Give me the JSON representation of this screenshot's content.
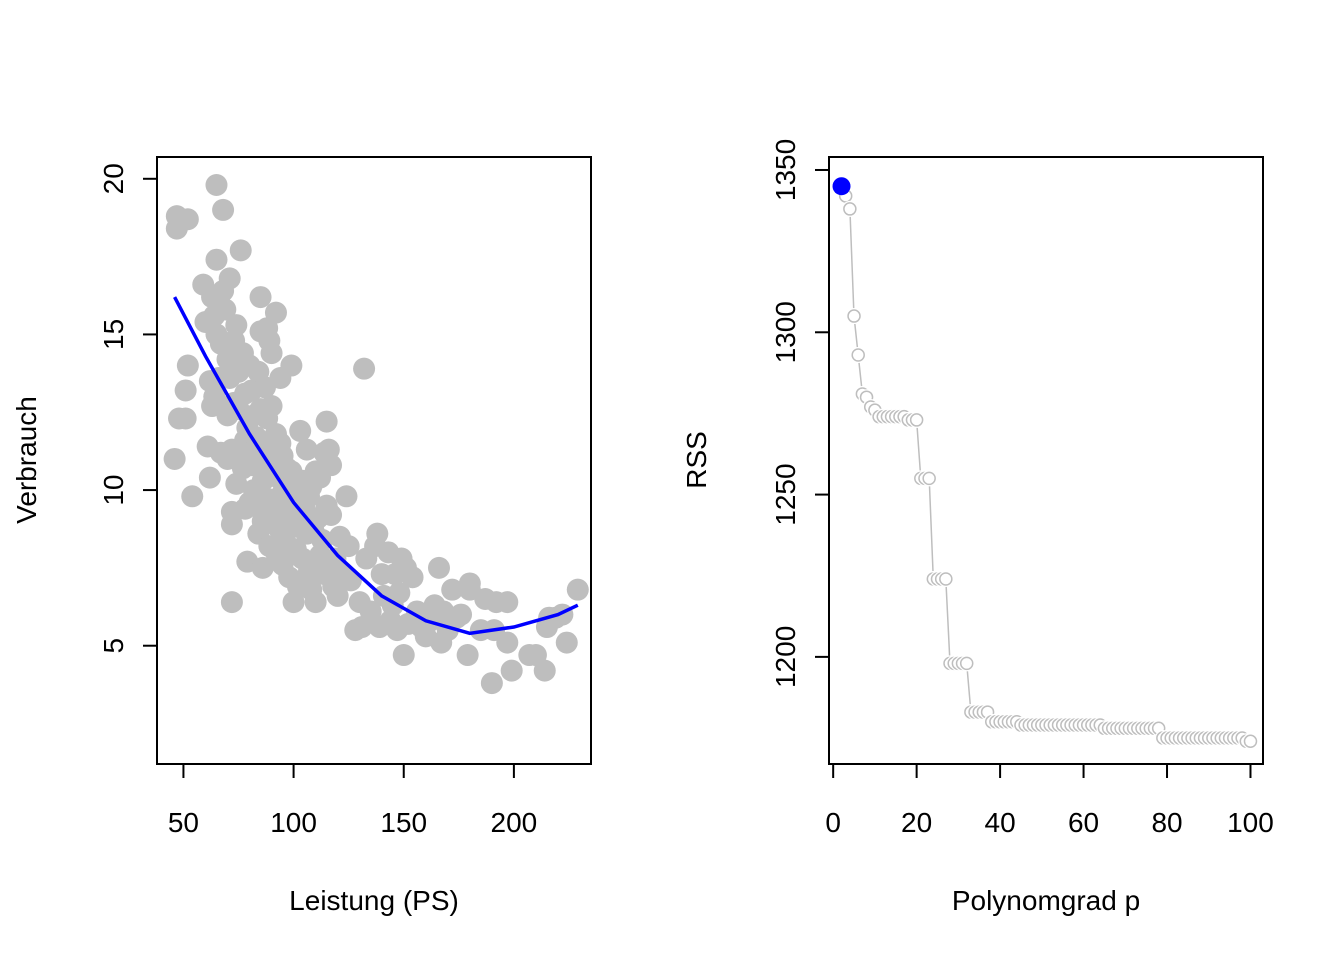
{
  "chart_data": [
    {
      "type": "scatter",
      "title": "",
      "xlabel": "Leistung (PS)",
      "ylabel": "Verbrauch",
      "xlim": [
        38,
        235
      ],
      "ylim": [
        1.2,
        20.7
      ],
      "x_ticks": [
        50,
        100,
        150,
        200
      ],
      "y_ticks": [
        5,
        10,
        15,
        20
      ],
      "point_color": "#bebebe",
      "points": [
        [
          46,
          11
        ],
        [
          47,
          18.8
        ],
        [
          47,
          18.4
        ],
        [
          48,
          12.3
        ],
        [
          51,
          12.3
        ],
        [
          51,
          13.2
        ],
        [
          52,
          14
        ],
        [
          52,
          18.7
        ],
        [
          54,
          9.8
        ],
        [
          59,
          16.6
        ],
        [
          60,
          15.4
        ],
        [
          61,
          11.4
        ],
        [
          62,
          13.5
        ],
        [
          62,
          10.4
        ],
        [
          63,
          16.2
        ],
        [
          63,
          12.7
        ],
        [
          64,
          13
        ],
        [
          64,
          15.6
        ],
        [
          65,
          19.8
        ],
        [
          65,
          17.4
        ],
        [
          65,
          15
        ],
        [
          66,
          13.6
        ],
        [
          67,
          11.2
        ],
        [
          67,
          14.7
        ],
        [
          68,
          19
        ],
        [
          68,
          16.4
        ],
        [
          69,
          15.8
        ],
        [
          69,
          12.6
        ],
        [
          70,
          14.2
        ],
        [
          70,
          12.4
        ],
        [
          70,
          11
        ],
        [
          71,
          16.8
        ],
        [
          71,
          13.6
        ],
        [
          72,
          11.3
        ],
        [
          72,
          9.3
        ],
        [
          72,
          8.9
        ],
        [
          72,
          6.4
        ],
        [
          73,
          14.8
        ],
        [
          73,
          12.8
        ],
        [
          74,
          15.3
        ],
        [
          74,
          10.2
        ],
        [
          75,
          13.8
        ],
        [
          75,
          12.6
        ],
        [
          75,
          11
        ],
        [
          76,
          17.7
        ],
        [
          77,
          14.4
        ],
        [
          77,
          10.7
        ],
        [
          78,
          13.1
        ],
        [
          78,
          11.6
        ],
        [
          78,
          9.4
        ],
        [
          79,
          12
        ],
        [
          79,
          7.7
        ],
        [
          80,
          14
        ],
        [
          80,
          11.2
        ],
        [
          80,
          9.6
        ],
        [
          81,
          13.2
        ],
        [
          81,
          10.8
        ],
        [
          82,
          12.4
        ],
        [
          82,
          10
        ],
        [
          83,
          11.7
        ],
        [
          83,
          9.5
        ],
        [
          84,
          13.8
        ],
        [
          84,
          11
        ],
        [
          84,
          8.6
        ],
        [
          85,
          16.2
        ],
        [
          85,
          15.1
        ],
        [
          85,
          12.6
        ],
        [
          86,
          10.3
        ],
        [
          86,
          9
        ],
        [
          86,
          7.5
        ],
        [
          87,
          13.3
        ],
        [
          87,
          11.5
        ],
        [
          88,
          15.2
        ],
        [
          88,
          12.3
        ],
        [
          88,
          10.8
        ],
        [
          89,
          14.8
        ],
        [
          89,
          9.7
        ],
        [
          89,
          8.2
        ],
        [
          90,
          14.4
        ],
        [
          90,
          12.7
        ],
        [
          90,
          11.2
        ],
        [
          91,
          10.5
        ],
        [
          91,
          9.3
        ],
        [
          92,
          15.7
        ],
        [
          92,
          11.8
        ],
        [
          92,
          8
        ],
        [
          93,
          10.4
        ],
        [
          93,
          8.8
        ],
        [
          94,
          13.6
        ],
        [
          94,
          11.5
        ],
        [
          95,
          11.1
        ],
        [
          95,
          9.9
        ],
        [
          95,
          7.6
        ],
        [
          96,
          10.2
        ],
        [
          96,
          8.4
        ],
        [
          97,
          10.7
        ],
        [
          97,
          9.4
        ],
        [
          98,
          9.8
        ],
        [
          98,
          7.2
        ],
        [
          99,
          14
        ],
        [
          99,
          10.6
        ],
        [
          99,
          8.9
        ],
        [
          100,
          9.5
        ],
        [
          100,
          6.4
        ],
        [
          101,
          10.1
        ],
        [
          101,
          8.1
        ],
        [
          102,
          9.2
        ],
        [
          102,
          6.9
        ],
        [
          103,
          11.9
        ],
        [
          103,
          8.8
        ],
        [
          104,
          10.3
        ],
        [
          104,
          7.8
        ],
        [
          105,
          9.4
        ],
        [
          105,
          7.1
        ],
        [
          106,
          11.3
        ],
        [
          106,
          8.6
        ],
        [
          107,
          9.8
        ],
        [
          107,
          7.4
        ],
        [
          108,
          10.1
        ],
        [
          108,
          6.8
        ],
        [
          109,
          8.7
        ],
        [
          110,
          10.6
        ],
        [
          110,
          6.4
        ],
        [
          111,
          9.1
        ],
        [
          112,
          10.4
        ],
        [
          112,
          7.9
        ],
        [
          113,
          8.4
        ],
        [
          114,
          11.2
        ],
        [
          114,
          7.3
        ],
        [
          115,
          12.2
        ],
        [
          115,
          9.5
        ],
        [
          116,
          11.3
        ],
        [
          116,
          7.6
        ],
        [
          117,
          10.8
        ],
        [
          117,
          9.2
        ],
        [
          118,
          6.9
        ],
        [
          119,
          7.8
        ],
        [
          120,
          6.6
        ],
        [
          121,
          8.5
        ],
        [
          122,
          7.3
        ],
        [
          124,
          9.8
        ],
        [
          125,
          8.2
        ],
        [
          126,
          7.1
        ],
        [
          128,
          5.5
        ],
        [
          130,
          6.4
        ],
        [
          131,
          5.6
        ],
        [
          132,
          13.9
        ],
        [
          133,
          7.8
        ],
        [
          135,
          6.1
        ],
        [
          137,
          8.2
        ],
        [
          138,
          8.6
        ],
        [
          139,
          5.6
        ],
        [
          140,
          7.3
        ],
        [
          141,
          6.6
        ],
        [
          143,
          8
        ],
        [
          144,
          5.8
        ],
        [
          145,
          6.3
        ],
        [
          146,
          7.3
        ],
        [
          147,
          5.5
        ],
        [
          148,
          6.7
        ],
        [
          149,
          7.8
        ],
        [
          150,
          4.7
        ],
        [
          151,
          7.5
        ],
        [
          152,
          5.7
        ],
        [
          154,
          7.2
        ],
        [
          156,
          6.1
        ],
        [
          158,
          5.6
        ],
        [
          160,
          5.3
        ],
        [
          162,
          5.8
        ],
        [
          164,
          6.3
        ],
        [
          166,
          7.5
        ],
        [
          167,
          5.1
        ],
        [
          168,
          6.1
        ],
        [
          170,
          5.5
        ],
        [
          172,
          6.8
        ],
        [
          174,
          5.9
        ],
        [
          176,
          6
        ],
        [
          179,
          4.7
        ],
        [
          180,
          7
        ],
        [
          180,
          6.8
        ],
        [
          185,
          5.5
        ],
        [
          187,
          6.5
        ],
        [
          190,
          3.8
        ],
        [
          191,
          5.5
        ],
        [
          192,
          6.4
        ],
        [
          197,
          6.4
        ],
        [
          197,
          5.1
        ],
        [
          199,
          4.2
        ],
        [
          207,
          4.7
        ],
        [
          210,
          4.7
        ],
        [
          214,
          4.2
        ],
        [
          215,
          5.6
        ],
        [
          216,
          5.9
        ],
        [
          219,
          5.9
        ],
        [
          222,
          6
        ],
        [
          224,
          5.1
        ],
        [
          229,
          6.8
        ]
      ],
      "fit": {
        "type": "quadratic",
        "color": "#0000ff",
        "x": [
          46,
          60,
          80,
          100,
          120,
          140,
          160,
          180,
          200,
          220,
          229
        ],
        "y": [
          16.2,
          14.3,
          11.8,
          9.6,
          7.9,
          6.6,
          5.8,
          5.4,
          5.6,
          6,
          6.3
        ]
      }
    },
    {
      "type": "line",
      "title": "",
      "xlabel": "Polynomgrad p",
      "ylabel": "RSS",
      "xlim": [
        -1,
        103
      ],
      "ylim": [
        1167,
        1354
      ],
      "x_ticks": [
        0,
        20,
        40,
        60,
        80,
        100
      ],
      "y_ticks": [
        1200,
        1250,
        1300,
        1350
      ],
      "line_color": "#bebebe",
      "highlight_color": "#0000ff",
      "highlight": {
        "x": 2,
        "y": 1345
      },
      "x": [
        2,
        3,
        4,
        5,
        6,
        7,
        8,
        9,
        10,
        11,
        12,
        13,
        14,
        15,
        16,
        17,
        18,
        19,
        20,
        21,
        22,
        23,
        24,
        25,
        26,
        27,
        28,
        29,
        30,
        31,
        32,
        33,
        34,
        35,
        36,
        37,
        38,
        39,
        40,
        41,
        42,
        43,
        44,
        45,
        46,
        47,
        48,
        49,
        50,
        51,
        52,
        53,
        54,
        55,
        56,
        57,
        58,
        59,
        60,
        61,
        62,
        63,
        64,
        65,
        66,
        67,
        68,
        69,
        70,
        71,
        72,
        73,
        74,
        75,
        76,
        77,
        78,
        79,
        80,
        81,
        82,
        83,
        84,
        85,
        86,
        87,
        88,
        89,
        90,
        91,
        92,
        93,
        94,
        95,
        96,
        97,
        98,
        99,
        100
      ],
      "y": [
        1345,
        1342,
        1338,
        1305,
        1293,
        1281,
        1280,
        1277,
        1276,
        1274,
        1274,
        1274,
        1274,
        1274,
        1274,
        1274,
        1273,
        1273,
        1273,
        1255,
        1255,
        1255,
        1224,
        1224,
        1224,
        1224,
        1198,
        1198,
        1198,
        1198,
        1198,
        1183,
        1183,
        1183,
        1183,
        1183,
        1180,
        1180,
        1180,
        1180,
        1180,
        1180,
        1180,
        1179,
        1179,
        1179,
        1179,
        1179,
        1179,
        1179,
        1179,
        1179,
        1179,
        1179,
        1179,
        1179,
        1179,
        1179,
        1179,
        1179,
        1179,
        1179,
        1179,
        1178,
        1178,
        1178,
        1178,
        1178,
        1178,
        1178,
        1178,
        1178,
        1178,
        1178,
        1178,
        1178,
        1178,
        1175,
        1175,
        1175,
        1175,
        1175,
        1175,
        1175,
        1175,
        1175,
        1175,
        1175,
        1175,
        1175,
        1175,
        1175,
        1175,
        1175,
        1175,
        1175,
        1175,
        1174,
        1174
      ]
    }
  ]
}
